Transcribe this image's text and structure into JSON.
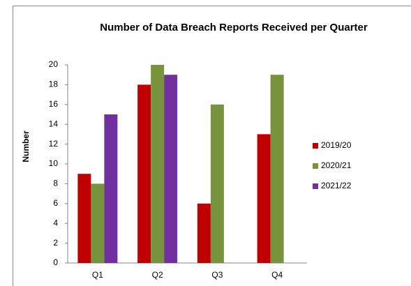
{
  "chart_data": {
    "type": "bar",
    "title": "Number of Data Breach Reports Received per Quarter",
    "y_label": "Number",
    "categories": [
      "Q1",
      "Q2",
      "Q3",
      "Q4"
    ],
    "series": [
      {
        "name": "2019/20",
        "color": "#c00000",
        "values": [
          9,
          18,
          6,
          13
        ]
      },
      {
        "name": "2020/21",
        "color": "#77933c",
        "values": [
          8,
          20,
          16,
          19
        ]
      },
      {
        "name": "2021/22",
        "color": "#7030a0",
        "values": [
          15,
          19,
          null,
          null
        ]
      }
    ],
    "ylim": [
      0,
      20
    ],
    "yticks": [
      0,
      2,
      4,
      6,
      8,
      10,
      12,
      14,
      16,
      18,
      20
    ],
    "grid": false,
    "legend": "right"
  }
}
